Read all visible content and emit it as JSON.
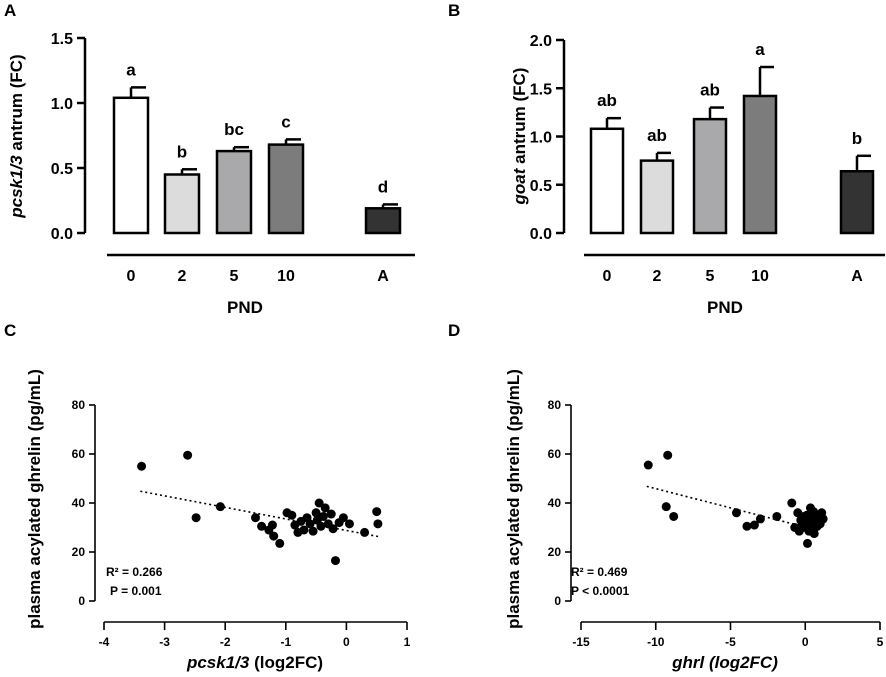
{
  "panels": {
    "A": {
      "letter": "A",
      "ylabel_gene": "pcsk1/3",
      "ylabel_rest": " antrum (FC)",
      "xlabel": "PND"
    },
    "B": {
      "letter": "B",
      "ylabel_gene": "goat",
      "ylabel_rest": " antrum (FC)",
      "xlabel": "PND"
    },
    "C": {
      "letter": "C",
      "ylabel": "plasma acylated ghrelin (pg/mL)",
      "xlabel_gene": "pcsk1/3",
      "xlabel_rest": " (log2FC)",
      "r2": "R² = 0.266",
      "p": "P = 0.001"
    },
    "D": {
      "letter": "D",
      "ylabel": "plasma acylated ghrelin (pg/mL)",
      "xlabel": "ghrl (log2FC)",
      "r2": "R² = 0.469",
      "p": "P < 0.0001"
    }
  },
  "chart_data": [
    {
      "id": "A",
      "type": "bar",
      "title": "",
      "xlabel": "PND",
      "ylabel": "pcsk1/3 antrum (FC)",
      "categories": [
        "0",
        "2",
        "5",
        "10",
        "A"
      ],
      "values": [
        1.04,
        0.45,
        0.63,
        0.68,
        0.19
      ],
      "errors": [
        0.08,
        0.04,
        0.03,
        0.04,
        0.03
      ],
      "significance": [
        "a",
        "b",
        "bc",
        "c",
        "d"
      ],
      "colors": [
        "#ffffff",
        "#dcdcdc",
        "#a9a9ab",
        "#7c7c7c",
        "#333333"
      ],
      "ylim": [
        0,
        1.5
      ],
      "yticks": [
        "0.0",
        "0.5",
        "1.0",
        "1.5"
      ]
    },
    {
      "id": "B",
      "type": "bar",
      "title": "",
      "xlabel": "PND",
      "ylabel": "goat antrum (FC)",
      "categories": [
        "0",
        "2",
        "5",
        "10",
        "A"
      ],
      "values": [
        1.08,
        0.75,
        1.18,
        1.42,
        0.64
      ],
      "errors": [
        0.11,
        0.08,
        0.12,
        0.3,
        0.16
      ],
      "significance": [
        "ab",
        "ab",
        "ab",
        "a",
        "b"
      ],
      "colors": [
        "#ffffff",
        "#dcdcdc",
        "#a9a9ab",
        "#7c7c7c",
        "#333333"
      ],
      "ylim": [
        0,
        2.0
      ],
      "yticks": [
        "0.0",
        "0.5",
        "1.0",
        "1.5",
        "2.0"
      ]
    },
    {
      "id": "C",
      "type": "scatter",
      "title": "",
      "xlabel": "pcsk1/3 (log2FC)",
      "ylabel": "plasma acylated ghrelin (pg/mL)",
      "xlim": [
        -4,
        1
      ],
      "ylim": [
        0,
        80
      ],
      "xticks": [
        "-4",
        "-3",
        "-2",
        "-1",
        "0",
        "1"
      ],
      "yticks": [
        "0",
        "20",
        "40",
        "60",
        "80"
      ],
      "trendline": {
        "x": [
          -3.4,
          0.55
        ],
        "y": [
          44.8,
          26.2
        ]
      },
      "points": [
        {
          "x": -3.38,
          "y": 55
        },
        {
          "x": -2.62,
          "y": 59.5
        },
        {
          "x": -2.48,
          "y": 34
        },
        {
          "x": -2.08,
          "y": 38.5
        },
        {
          "x": -1.5,
          "y": 34
        },
        {
          "x": -1.4,
          "y": 30.5
        },
        {
          "x": -1.28,
          "y": 29
        },
        {
          "x": -1.2,
          "y": 26.5
        },
        {
          "x": -1.22,
          "y": 31
        },
        {
          "x": -1.1,
          "y": 23.5
        },
        {
          "x": -0.98,
          "y": 36
        },
        {
          "x": -0.9,
          "y": 35
        },
        {
          "x": -0.85,
          "y": 31
        },
        {
          "x": -0.8,
          "y": 28
        },
        {
          "x": -0.75,
          "y": 32.5
        },
        {
          "x": -0.7,
          "y": 29
        },
        {
          "x": -0.65,
          "y": 34
        },
        {
          "x": -0.6,
          "y": 31.5
        },
        {
          "x": -0.55,
          "y": 28.5
        },
        {
          "x": -0.5,
          "y": 36
        },
        {
          "x": -0.48,
          "y": 33
        },
        {
          "x": -0.45,
          "y": 40
        },
        {
          "x": -0.42,
          "y": 30.5
        },
        {
          "x": -0.38,
          "y": 34.5
        },
        {
          "x": -0.35,
          "y": 38
        },
        {
          "x": -0.3,
          "y": 31.5
        },
        {
          "x": -0.25,
          "y": 35.5
        },
        {
          "x": -0.22,
          "y": 29.5
        },
        {
          "x": -0.18,
          "y": 16.5
        },
        {
          "x": -0.12,
          "y": 32
        },
        {
          "x": -0.05,
          "y": 34
        },
        {
          "x": 0.05,
          "y": 31.5
        },
        {
          "x": 0.3,
          "y": 28
        },
        {
          "x": 0.5,
          "y": 36.5
        },
        {
          "x": 0.52,
          "y": 31.5
        }
      ]
    },
    {
      "id": "D",
      "type": "scatter",
      "title": "",
      "xlabel": "ghrl (log2FC)",
      "ylabel": "plasma acylated ghrelin (pg/mL)",
      "xlim": [
        -15,
        5
      ],
      "ylim": [
        0,
        80
      ],
      "xticks": [
        "-15",
        "-10",
        "-5",
        "0",
        "5"
      ],
      "yticks": [
        "0",
        "20",
        "40",
        "60",
        "80"
      ],
      "trendline": {
        "x": [
          -10.6,
          1.0
        ],
        "y": [
          46.8,
          28.6
        ]
      },
      "points": [
        {
          "x": -10.5,
          "y": 55.5
        },
        {
          "x": -9.2,
          "y": 59.5
        },
        {
          "x": -9.3,
          "y": 38.5
        },
        {
          "x": -8.8,
          "y": 34.5
        },
        {
          "x": -4.6,
          "y": 36
        },
        {
          "x": -3.9,
          "y": 30.5
        },
        {
          "x": -3.4,
          "y": 31
        },
        {
          "x": -3.0,
          "y": 33.5
        },
        {
          "x": -1.9,
          "y": 34.5
        },
        {
          "x": -0.9,
          "y": 40
        },
        {
          "x": -0.7,
          "y": 30
        },
        {
          "x": -0.5,
          "y": 36
        },
        {
          "x": -0.4,
          "y": 28.5
        },
        {
          "x": -0.3,
          "y": 33
        },
        {
          "x": -0.2,
          "y": 31.5
        },
        {
          "x": -0.1,
          "y": 34.5
        },
        {
          "x": 0.0,
          "y": 30
        },
        {
          "x": 0.1,
          "y": 35
        },
        {
          "x": 0.15,
          "y": 23.5
        },
        {
          "x": 0.2,
          "y": 32
        },
        {
          "x": 0.25,
          "y": 28.5
        },
        {
          "x": 0.35,
          "y": 38
        },
        {
          "x": 0.4,
          "y": 31
        },
        {
          "x": 0.45,
          "y": 33.5
        },
        {
          "x": 0.5,
          "y": 29.5
        },
        {
          "x": 0.55,
          "y": 36.5
        },
        {
          "x": 0.6,
          "y": 27.5
        },
        {
          "x": 0.7,
          "y": 32.5
        },
        {
          "x": 0.8,
          "y": 30.5
        },
        {
          "x": 0.9,
          "y": 34
        },
        {
          "x": 1.0,
          "y": 31.5
        },
        {
          "x": 1.1,
          "y": 36
        },
        {
          "x": 1.2,
          "y": 33.5
        }
      ]
    }
  ]
}
